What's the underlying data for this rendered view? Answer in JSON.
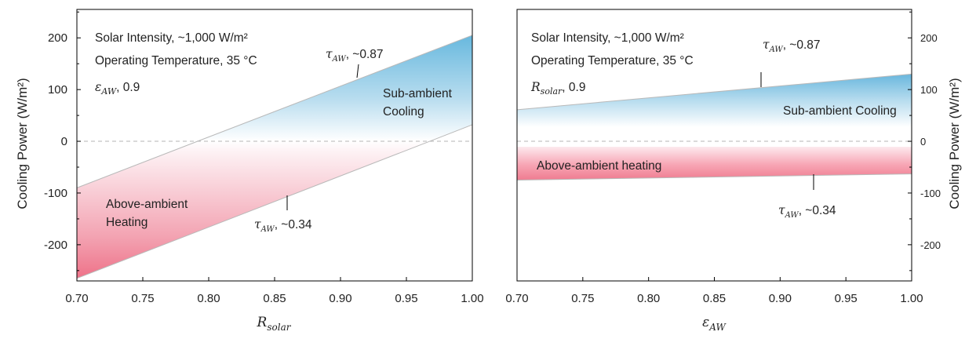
{
  "chart_data": [
    {
      "type": "area",
      "xlabel_main": "R",
      "xlabel_sub": "solar",
      "ylabel": "Cooling Power (W/m²)",
      "xlim": [
        0.7,
        1.0
      ],
      "ylim": [
        -270,
        255
      ],
      "x_ticks": [
        "0.70",
        "0.75",
        "0.80",
        "0.85",
        "0.90",
        "0.95",
        "1.00"
      ],
      "x_tick_values": [
        0.7,
        0.75,
        0.8,
        0.85,
        0.9,
        0.95,
        1.0
      ],
      "y_ticks": [
        "200",
        "100",
        "0",
        "-100",
        "-200"
      ],
      "y_tick_values": [
        200,
        100,
        0,
        -100,
        -200
      ],
      "y_axis_side": "left",
      "zero_line": true,
      "series": [
        {
          "name": "τAW, ~0.87",
          "x": [
            0.7,
            1.0
          ],
          "y": [
            -90,
            205
          ]
        },
        {
          "name": "τAW, ~0.34",
          "x": [
            0.7,
            1.0
          ],
          "y": [
            -265,
            32
          ]
        }
      ],
      "annotations": {
        "line1": "Solar Intensity, ~1,000 W/m²",
        "line2": "Operating Temperature, 35 °C",
        "param_symbol": "ε",
        "param_sub": "AW",
        "param_value": ", 0.9",
        "upper_label_symbol": "τ",
        "upper_label_sub": "AW",
        "upper_label_value": ", ~0.87",
        "lower_label_symbol": "τ",
        "lower_label_sub": "AW",
        "lower_label_value": ", ~0.34",
        "cooling_region_line1": "Sub-ambient",
        "cooling_region_line2": "Cooling",
        "heating_region_line1": "Above-ambient",
        "heating_region_line2": "Heating"
      },
      "colors": {
        "cooling": "#67b8de",
        "heating": "#ee6f86"
      }
    },
    {
      "type": "area",
      "xlabel_main": "ε",
      "xlabel_sub": "AW",
      "ylabel": "Cooling Power (W/m²)",
      "xlim": [
        0.7,
        1.0
      ],
      "ylim": [
        -270,
        255
      ],
      "x_ticks": [
        "0.70",
        "0.75",
        "0.80",
        "0.85",
        "0.90",
        "0.95",
        "1.00"
      ],
      "x_tick_values": [
        0.7,
        0.75,
        0.8,
        0.85,
        0.9,
        0.95,
        1.0
      ],
      "y_ticks": [
        "200",
        "100",
        "0",
        "-100",
        "-200"
      ],
      "y_tick_values": [
        200,
        100,
        0,
        -100,
        -200
      ],
      "y_axis_side": "right",
      "zero_line": true,
      "series": [
        {
          "name": "τAW, ~0.87",
          "x": [
            0.7,
            1.0
          ],
          "y": [
            61,
            130
          ]
        },
        {
          "name": "τAW, ~0.34",
          "x": [
            0.7,
            1.0
          ],
          "y": [
            -75,
            -63
          ]
        }
      ],
      "annotations": {
        "line1": "Solar Intensity, ~1,000 W/m²",
        "line2": "Operating Temperature, 35 °C",
        "param_symbol": "R",
        "param_sub": "solar",
        "param_value": ", 0.9",
        "upper_label_symbol": "τ",
        "upper_label_sub": "AW",
        "upper_label_value": ", ~0.87",
        "lower_label_symbol": "τ",
        "lower_label_sub": "AW",
        "lower_label_value": ", ~0.34",
        "cooling_region_line1": "Sub-ambient Cooling",
        "heating_region_line1": "Above-ambient heating"
      },
      "colors": {
        "cooling": "#67b8de",
        "heating": "#ee6f86"
      }
    }
  ]
}
